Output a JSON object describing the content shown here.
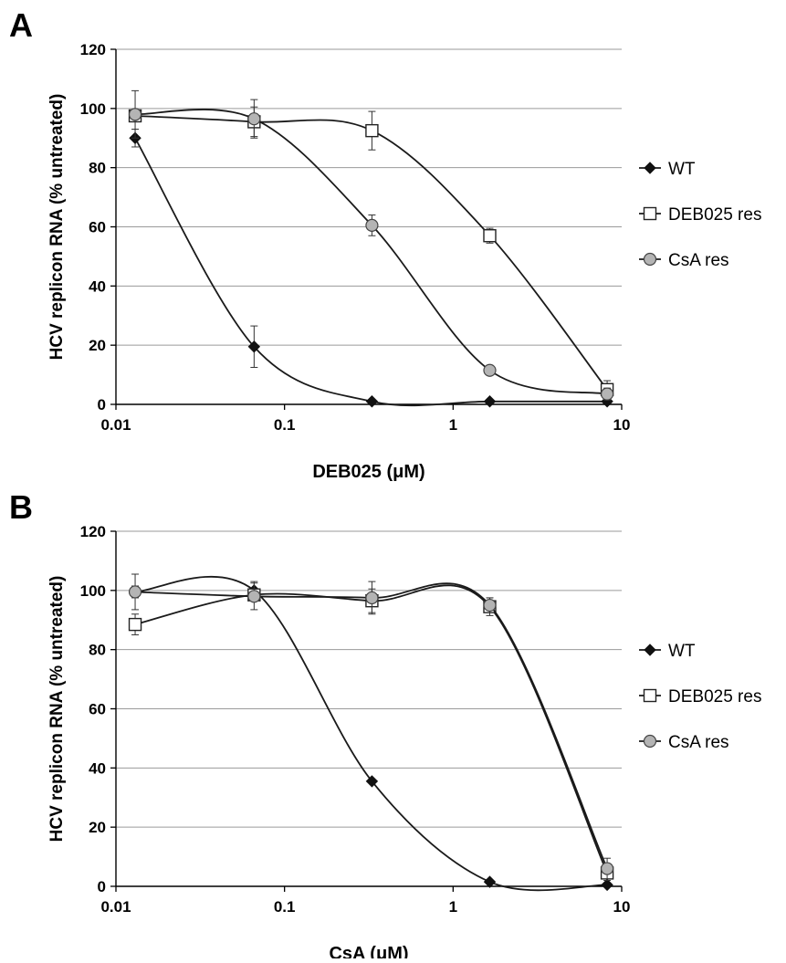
{
  "chart_data": [
    {
      "panel_label": "A",
      "type": "line",
      "xscale": "log",
      "xlabel": "DEB025 (μM)",
      "ylabel": "HCV replicon RNA (% untreated)",
      "xlim": [
        0.01,
        10
      ],
      "ylim": [
        0,
        120
      ],
      "xticks": [
        "0.01",
        "0.1",
        "1",
        "10"
      ],
      "yticks": [
        "0",
        "20",
        "40",
        "60",
        "80",
        "100",
        "120"
      ],
      "grid": "horizontal",
      "legend_position": "right",
      "x": [
        0.013,
        0.066,
        0.33,
        1.65,
        8.2
      ],
      "series": [
        {
          "name": "WT",
          "marker": "diamond",
          "values": [
            90,
            19.5,
            1,
            1,
            1
          ],
          "errors": [
            3,
            7,
            0.5,
            0.5,
            0.5
          ]
        },
        {
          "name": "DEB025 res",
          "marker": "square",
          "values": [
            97.5,
            95.5,
            92.5,
            57,
            5
          ],
          "errors": [
            2,
            5,
            6.5,
            2.5,
            3
          ]
        },
        {
          "name": "CsA res",
          "marker": "circle",
          "values": [
            98,
            96.5,
            60.5,
            11.5,
            3.5
          ],
          "errors": [
            8,
            6.5,
            3.5,
            1,
            2
          ]
        }
      ]
    },
    {
      "panel_label": "B",
      "type": "line",
      "xscale": "log",
      "xlabel": "CsA (μM)",
      "ylabel": "HCV replicon RNA (% untreated)",
      "xlim": [
        0.01,
        10
      ],
      "ylim": [
        0,
        120
      ],
      "xticks": [
        "0.01",
        "0.1",
        "1",
        "10"
      ],
      "yticks": [
        "0",
        "20",
        "40",
        "60",
        "80",
        "100",
        "120"
      ],
      "grid": "horizontal",
      "legend_position": "right",
      "x": [
        0.013,
        0.066,
        0.33,
        1.65,
        8.2
      ],
      "series": [
        {
          "name": "WT",
          "marker": "diamond",
          "values": [
            99.5,
            100,
            35.5,
            1.5,
            0.5
          ],
          "errors": [
            2,
            3,
            0.5,
            0.5,
            0.5
          ]
        },
        {
          "name": "DEB025 res",
          "marker": "square",
          "values": [
            88.5,
            98.5,
            96.5,
            94.5,
            4.5
          ],
          "errors": [
            3.5,
            2,
            4,
            3,
            2.5
          ]
        },
        {
          "name": "CsA res",
          "marker": "circle",
          "values": [
            99.5,
            98,
            97.5,
            95,
            6
          ],
          "errors": [
            6,
            4.5,
            5.5,
            2.5,
            3.5
          ]
        }
      ]
    }
  ]
}
